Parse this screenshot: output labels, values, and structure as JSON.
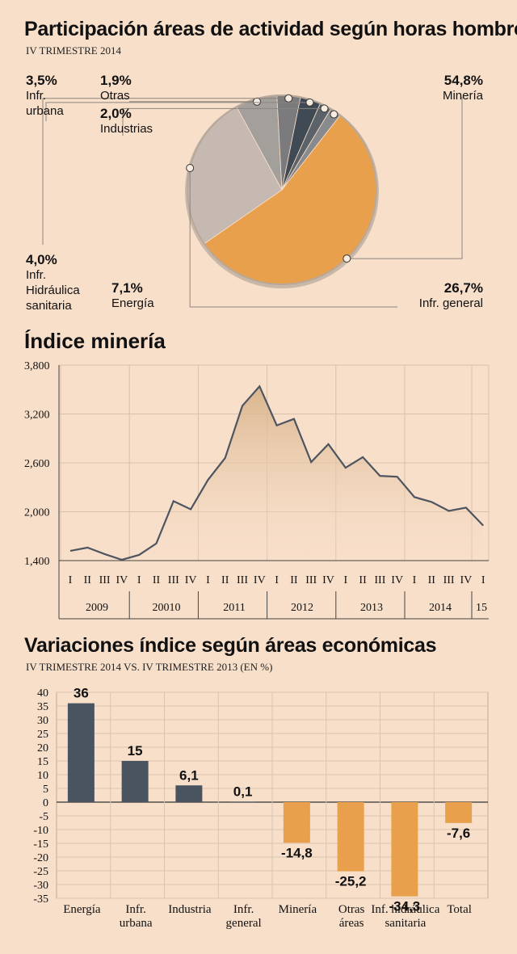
{
  "pie_section": {
    "title": "Participación áreas de actividad según horas hombre",
    "subtitle": "IV TRIMESTRE 2014"
  },
  "line_section": {
    "title": "Índice minería"
  },
  "bar_section": {
    "title": "Variaciones índice según áreas económicas",
    "subtitle": "IV TRIMESTRE 2014 VS. IV TRIMESTRE 2013 (EN %)"
  },
  "colors": {
    "background": "#f8dfca",
    "orange": "#e9a04c",
    "dark": "#4a5360",
    "line": "#4d5560"
  },
  "chart_data": [
    {
      "type": "pie",
      "title": "Participación áreas de actividad según horas hombre",
      "subtitle": "IV TRIMESTRE 2014",
      "slices": [
        {
          "label": "Minería",
          "value": 54.8,
          "value_label": "54,8%",
          "color": "#e9a04c"
        },
        {
          "label": "Infr. general",
          "value": 26.7,
          "value_label": "26,7%",
          "color": "#c5b9b1"
        },
        {
          "label": "Energía",
          "value": 7.1,
          "value_label": "7,1%",
          "color": "#a39f9b"
        },
        {
          "label": "Infr. Hidráulica sanitaria",
          "value": 4.0,
          "value_label": "4,0%",
          "color": "#7b7b7e"
        },
        {
          "label": "Infr. urbana",
          "value": 3.5,
          "value_label": "3,5%",
          "color": "#3f4a54"
        },
        {
          "label": "Industrias",
          "value": 2.0,
          "value_label": "2,0%",
          "color": "#5b6269"
        },
        {
          "label": "Otras",
          "value": 1.9,
          "value_label": "1,9%",
          "color": "#888a8d"
        }
      ]
    },
    {
      "type": "area",
      "title": "Índice minería",
      "ylim": [
        1400,
        3800
      ],
      "yticks": [
        1400,
        2000,
        2600,
        3200,
        3800
      ],
      "ytick_labels": [
        "1,400",
        "2,000",
        "2,600",
        "3,200",
        "3,800"
      ],
      "quarters": [
        "I",
        "II",
        "III",
        "IV",
        "I",
        "II",
        "III",
        "IV",
        "I",
        "II",
        "III",
        "IV",
        "I",
        "II",
        "III",
        "IV",
        "I",
        "II",
        "III",
        "IV",
        "I",
        "II",
        "III",
        "IV",
        "I"
      ],
      "years": [
        "2009",
        "20010",
        "2011",
        "2012",
        "2013",
        "2014",
        "15"
      ],
      "values": [
        1520,
        1560,
        1480,
        1410,
        1470,
        1610,
        2130,
        2030,
        2390,
        2660,
        3300,
        3540,
        3060,
        3140,
        2610,
        2830,
        2540,
        2670,
        2440,
        2430,
        2180,
        2120,
        2010,
        2050,
        1830
      ]
    },
    {
      "type": "bar",
      "title": "Variaciones índice según áreas económicas",
      "subtitle": "IV TRIMESTRE 2014 VS. IV TRIMESTRE 2013 (EN %)",
      "categories": [
        "Energía",
        "Infr. urbana",
        "Industria",
        "Infr. general",
        "Minería",
        "Otras áreas",
        "Inf. hidráulica sanitaria",
        "Total"
      ],
      "category_lines": [
        [
          "Energía"
        ],
        [
          "Infr.",
          "urbana"
        ],
        [
          "Industria"
        ],
        [
          "Infr.",
          "general"
        ],
        [
          "Minería"
        ],
        [
          "Otras",
          "áreas"
        ],
        [
          "Inf. hidráulica",
          "sanitaria"
        ],
        [
          "Total"
        ]
      ],
      "values": [
        36,
        15,
        6.1,
        0.1,
        -14.8,
        -25.2,
        -34.3,
        -7.6
      ],
      "value_labels": [
        "36",
        "15",
        "6,1",
        "0,1",
        "-14,8",
        "-25,2",
        "-34,3",
        "-7,6"
      ],
      "ylim": [
        -35,
        40
      ],
      "yticks": [
        40,
        35,
        30,
        25,
        20,
        15,
        10,
        5,
        0,
        -5,
        -10,
        -15,
        -20,
        -25,
        -30,
        -35
      ]
    }
  ]
}
